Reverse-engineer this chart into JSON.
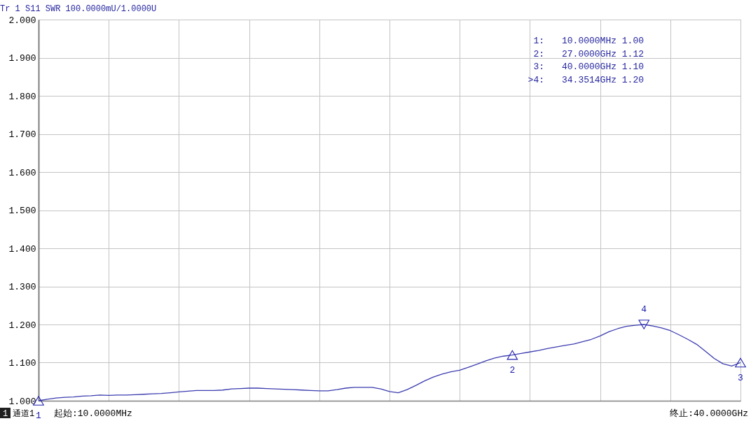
{
  "chart_data": {
    "type": "line",
    "title": "Tr 1  S11 SWR 100.0000mU/1.0000U",
    "categories": [
      null,
      null,
      null,
      null,
      null,
      null,
      null,
      null,
      null,
      null,
      null,
      null,
      null,
      null,
      null,
      null,
      null,
      null,
      null,
      null,
      null,
      null,
      null,
      null,
      null,
      null,
      null,
      null,
      null,
      null,
      null,
      null,
      null,
      null,
      null,
      null,
      null,
      null,
      null,
      null,
      null,
      null,
      null,
      null,
      null,
      null,
      null,
      null,
      null,
      null,
      null,
      null,
      null,
      null,
      null,
      null,
      null,
      null,
      null,
      null,
      null,
      null,
      null,
      null,
      null,
      null,
      null,
      null,
      null,
      null,
      null,
      null,
      null,
      null,
      null,
      null,
      null,
      null,
      null,
      null,
      null
    ],
    "series": [
      {
        "color": "#3c3cb0",
        "values": [
          1.0,
          1.004,
          1.007,
          1.009,
          1.01,
          1.012,
          1.013,
          1.015,
          1.014,
          1.015,
          1.015,
          1.016,
          1.017,
          1.018,
          1.019,
          1.021,
          1.023,
          1.025,
          1.027,
          1.027,
          1.027,
          1.028,
          1.031,
          1.032,
          1.033,
          1.033,
          1.032,
          1.031,
          1.03,
          1.029,
          1.028,
          1.027,
          1.026,
          1.026,
          1.029,
          1.033,
          1.035,
          1.035,
          1.035,
          1.031,
          1.024,
          1.021,
          1.029,
          1.04,
          1.052,
          1.062,
          1.07,
          1.076,
          1.08,
          1.088,
          1.096,
          1.105,
          1.112,
          1.117,
          1.12,
          1.124,
          1.128,
          1.132,
          1.137,
          1.141,
          1.145,
          1.149,
          1.155,
          1.161,
          1.17,
          1.181,
          1.189,
          1.195,
          1.198,
          1.2,
          1.196,
          1.191,
          1.184,
          1.173,
          1.161,
          1.148,
          1.13,
          1.111,
          1.097,
          1.091,
          1.1
        ]
      },
      {
        "type": "scatter",
        "name": "1",
        "marker": "triangle",
        "color": "#2020b0",
        "values": [
          1.0,
          null,
          null,
          null,
          null,
          null,
          null,
          null,
          null,
          null,
          null,
          null,
          null,
          null,
          null,
          null,
          null,
          null,
          null,
          null,
          null,
          null,
          null,
          null,
          null,
          null,
          null,
          null,
          null,
          null,
          null,
          null,
          null,
          null,
          null,
          null,
          null,
          null,
          null,
          null,
          null,
          null,
          null,
          null,
          null,
          null,
          null,
          null,
          null,
          null,
          null,
          null,
          null,
          null,
          null,
          null,
          null,
          null,
          null,
          null,
          null,
          null,
          null,
          null,
          null,
          null,
          null,
          null,
          null,
          null,
          null,
          null,
          null,
          null,
          null,
          null,
          null,
          null,
          null,
          null,
          null
        ]
      },
      {
        "type": "scatter",
        "name": "2",
        "marker": "triangle",
        "color": "#2020b0",
        "values": [
          null,
          null,
          null,
          null,
          null,
          null,
          null,
          null,
          null,
          null,
          null,
          null,
          null,
          null,
          null,
          null,
          null,
          null,
          null,
          null,
          null,
          null,
          null,
          null,
          null,
          null,
          null,
          null,
          null,
          null,
          null,
          null,
          null,
          null,
          null,
          null,
          null,
          null,
          null,
          null,
          null,
          null,
          null,
          null,
          null,
          null,
          null,
          null,
          null,
          null,
          null,
          null,
          null,
          null,
          1.12,
          null,
          null,
          null,
          null,
          null,
          null,
          null,
          null,
          null,
          null,
          null,
          null,
          null,
          null,
          null,
          null,
          null,
          null,
          null,
          null,
          null,
          null,
          null,
          null,
          null,
          null
        ]
      },
      {
        "type": "scatter",
        "name": "3",
        "marker": "triangle",
        "color": "#2020b0",
        "values": [
          null,
          null,
          null,
          null,
          null,
          null,
          null,
          null,
          null,
          null,
          null,
          null,
          null,
          null,
          null,
          null,
          null,
          null,
          null,
          null,
          null,
          null,
          null,
          null,
          null,
          null,
          null,
          null,
          null,
          null,
          null,
          null,
          null,
          null,
          null,
          null,
          null,
          null,
          null,
          null,
          null,
          null,
          null,
          null,
          null,
          null,
          null,
          null,
          null,
          null,
          null,
          null,
          null,
          null,
          null,
          null,
          null,
          null,
          null,
          null,
          null,
          null,
          null,
          null,
          null,
          null,
          null,
          null,
          null,
          null,
          null,
          null,
          null,
          null,
          null,
          null,
          null,
          null,
          null,
          null,
          1.1
        ]
      },
      {
        "type": "scatter",
        "name": "4",
        "marker": "triangle",
        "color": "#2020b0",
        "values": [
          null,
          null,
          null,
          null,
          null,
          null,
          null,
          null,
          null,
          null,
          null,
          null,
          null,
          null,
          null,
          null,
          null,
          null,
          null,
          null,
          null,
          null,
          null,
          null,
          null,
          null,
          null,
          null,
          null,
          null,
          null,
          null,
          null,
          null,
          null,
          null,
          null,
          null,
          null,
          null,
          null,
          null,
          null,
          null,
          null,
          null,
          null,
          null,
          null,
          null,
          null,
          null,
          null,
          null,
          null,
          null,
          null,
          null,
          null,
          null,
          null,
          null,
          null,
          null,
          null,
          null,
          null,
          null,
          null,
          1.2,
          null,
          null,
          null,
          null,
          null,
          null,
          null,
          null,
          null,
          null,
          null
        ]
      }
    ],
    "ylim": [
      1.0,
      2.0
    ],
    "yticks": [
      {
        "value": 1.0,
        "label": "1.000"
      },
      {
        "value": 1.1,
        "label": "1.100"
      },
      {
        "value": 1.2,
        "label": "1.200"
      },
      {
        "value": 1.3,
        "label": "1.300"
      },
      {
        "value": 1.4,
        "label": "1.400"
      },
      {
        "value": 1.5,
        "label": "1.500"
      },
      {
        "value": 1.6,
        "label": "1.600"
      },
      {
        "value": 1.7,
        "label": "1.700"
      },
      {
        "value": 1.8,
        "label": "1.800"
      },
      {
        "value": 1.9,
        "label": "1.900"
      },
      {
        "value": 2.0,
        "label": "2.000"
      }
    ],
    "grid": true,
    "tick_labels": "y",
    "annotations": [
      "1:",
      "10.0000MHz 1.00",
      "2:",
      "27.0000GHz 1.12",
      "3:",
      "40.0000GHz 1.10",
      ">4:",
      "34.3514GHz 1.20",
      "1",
      "通道1",
      "起始:10.0000MHz",
      "终止:40.0000GHz"
    ]
  }
}
